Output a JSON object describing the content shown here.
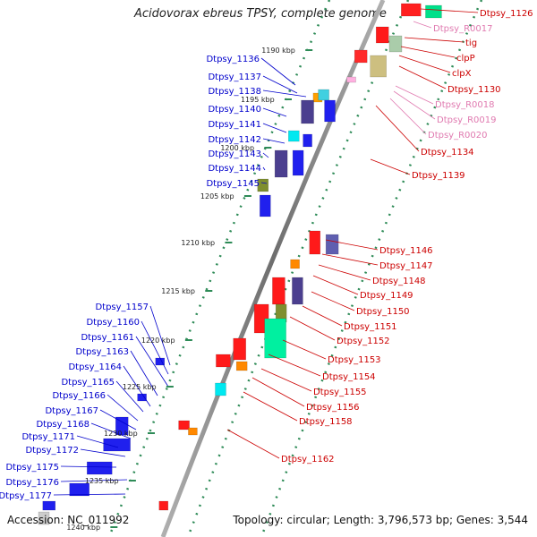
{
  "title": "Acidovorax ebreus TPSY, complete genome",
  "accession": "Accession: NC_011992",
  "summary": "Topology: circular; Length: 3,796,573 bp; Genes: 3,544",
  "colors": {
    "forward_label": "#cc0000",
    "reverse_label": "#0000cc",
    "rna_label": "#e07ab0",
    "backbone": "#808080",
    "tick": "#2e8b57"
  },
  "kbp_ticks": [
    "1190 kbp",
    "1195 kbp",
    "1200 kbp",
    "1205 kbp",
    "1210 kbp",
    "1215 kbp",
    "1220 kbp",
    "1225 kbp",
    "1230 kbp",
    "1235 kbp",
    "1240 kbp"
  ],
  "left_labels": [
    "Dtpsy_1136",
    "Dtpsy_1137",
    "Dtpsy_1138",
    "Dtpsy_1140",
    "Dtpsy_1141",
    "Dtpsy_1142",
    "Dtpsy_1143",
    "Dtpsy_1144",
    "Dtpsy_1145",
    "Dtpsy_1157",
    "Dtpsy_1160",
    "Dtpsy_1161",
    "Dtpsy_1163",
    "Dtpsy_1164",
    "Dtpsy_1165",
    "Dtpsy_1166",
    "Dtpsy_1167",
    "Dtpsy_1168",
    "Dtpsy_1171",
    "Dtpsy_1172",
    "Dtpsy_1175",
    "Dtpsy_1176",
    "Dtpsy_1177"
  ],
  "right_labels": [
    {
      "text": "Dtpsy_1126",
      "kind": "gene"
    },
    {
      "text": "Dtpsy_R0017",
      "kind": "rna"
    },
    {
      "text": "tig",
      "kind": "gene"
    },
    {
      "text": "clpP",
      "kind": "gene"
    },
    {
      "text": "clpX",
      "kind": "gene"
    },
    {
      "text": "Dtpsy_1130",
      "kind": "gene"
    },
    {
      "text": "Dtpsy_R0018",
      "kind": "rna"
    },
    {
      "text": "Dtpsy_R0019",
      "kind": "rna"
    },
    {
      "text": "Dtpsy_R0020",
      "kind": "rna"
    },
    {
      "text": "Dtpsy_1134",
      "kind": "gene"
    },
    {
      "text": "Dtpsy_1139",
      "kind": "gene"
    },
    {
      "text": "Dtpsy_1146",
      "kind": "gene"
    },
    {
      "text": "Dtpsy_1147",
      "kind": "gene"
    },
    {
      "text": "Dtpsy_1148",
      "kind": "gene"
    },
    {
      "text": "Dtpsy_1149",
      "kind": "gene"
    },
    {
      "text": "Dtpsy_1150",
      "kind": "gene"
    },
    {
      "text": "Dtpsy_1151",
      "kind": "gene"
    },
    {
      "text": "Dtpsy_1152",
      "kind": "gene"
    },
    {
      "text": "Dtpsy_1153",
      "kind": "gene"
    },
    {
      "text": "Dtpsy_1154",
      "kind": "gene"
    },
    {
      "text": "Dtpsy_1155",
      "kind": "gene"
    },
    {
      "text": "Dtpsy_1156",
      "kind": "gene"
    },
    {
      "text": "Dtpsy_1158",
      "kind": "gene"
    },
    {
      "text": "Dtpsy_1162",
      "kind": "gene"
    }
  ]
}
